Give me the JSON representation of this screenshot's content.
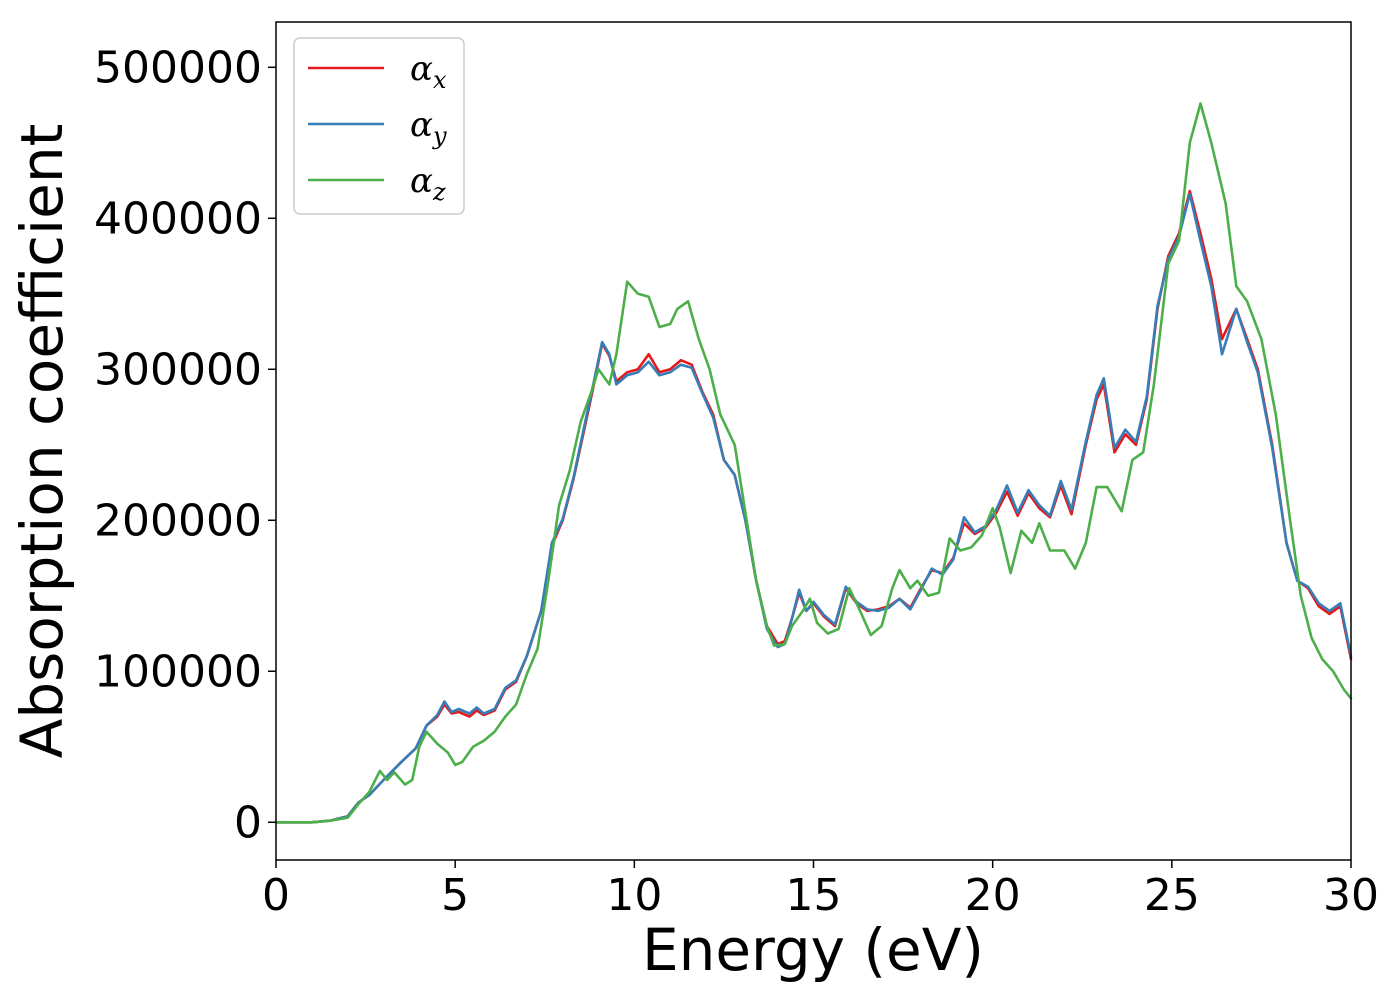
{
  "chart_data": {
    "type": "line",
    "xlabel": "Energy (eV)",
    "ylabel": "Absorption coefficient",
    "xlim": [
      0,
      30
    ],
    "ylim": [
      -25000,
      530000
    ],
    "xticks": [
      0,
      5,
      10,
      15,
      20,
      25,
      30
    ],
    "yticks": [
      0,
      100000,
      200000,
      300000,
      400000,
      500000
    ],
    "grid": false,
    "legend_position": "upper-left",
    "series": [
      {
        "name": "αx",
        "symbol": "α",
        "subscript": "x",
        "color": "#e41a1c",
        "points": [
          [
            0,
            0
          ],
          [
            1,
            0
          ],
          [
            1.5,
            1000
          ],
          [
            2,
            4000
          ],
          [
            2.3,
            13000
          ],
          [
            2.6,
            18000
          ],
          [
            3,
            28000
          ],
          [
            3.5,
            40000
          ],
          [
            3.9,
            49000
          ],
          [
            4.2,
            64000
          ],
          [
            4.5,
            70000
          ],
          [
            4.7,
            78000
          ],
          [
            4.9,
            72000
          ],
          [
            5.1,
            73000
          ],
          [
            5.4,
            70000
          ],
          [
            5.6,
            74000
          ],
          [
            5.8,
            71000
          ],
          [
            6.1,
            74000
          ],
          [
            6.4,
            88000
          ],
          [
            6.7,
            93000
          ],
          [
            7,
            110000
          ],
          [
            7.4,
            140000
          ],
          [
            7.7,
            183000
          ],
          [
            8,
            200000
          ],
          [
            8.3,
            227000
          ],
          [
            8.6,
            260000
          ],
          [
            8.9,
            293000
          ],
          [
            9.1,
            317000
          ],
          [
            9.3,
            309000
          ],
          [
            9.5,
            292000
          ],
          [
            9.8,
            298000
          ],
          [
            10.1,
            300000
          ],
          [
            10.4,
            310000
          ],
          [
            10.7,
            298000
          ],
          [
            11,
            300000
          ],
          [
            11.3,
            306000
          ],
          [
            11.6,
            303000
          ],
          [
            11.9,
            285000
          ],
          [
            12.2,
            270000
          ],
          [
            12.5,
            240000
          ],
          [
            12.8,
            230000
          ],
          [
            13.1,
            200000
          ],
          [
            13.4,
            160000
          ],
          [
            13.7,
            130000
          ],
          [
            14,
            118000
          ],
          [
            14.2,
            120000
          ],
          [
            14.4,
            135000
          ],
          [
            14.6,
            152000
          ],
          [
            14.8,
            140000
          ],
          [
            15,
            145000
          ],
          [
            15.3,
            136000
          ],
          [
            15.6,
            130000
          ],
          [
            15.9,
            155000
          ],
          [
            16.2,
            145000
          ],
          [
            16.5,
            140000
          ],
          [
            16.8,
            141000
          ],
          [
            17.1,
            143000
          ],
          [
            17.4,
            148000
          ],
          [
            17.7,
            142000
          ],
          [
            18,
            155000
          ],
          [
            18.3,
            167000
          ],
          [
            18.6,
            165000
          ],
          [
            18.9,
            175000
          ],
          [
            19.2,
            198000
          ],
          [
            19.5,
            191000
          ],
          [
            19.8,
            195000
          ],
          [
            20.1,
            205000
          ],
          [
            20.4,
            219000
          ],
          [
            20.7,
            203000
          ],
          [
            21,
            218000
          ],
          [
            21.3,
            208000
          ],
          [
            21.6,
            202000
          ],
          [
            21.9,
            223000
          ],
          [
            22.2,
            204000
          ],
          [
            22.6,
            250000
          ],
          [
            22.9,
            280000
          ],
          [
            23.1,
            290000
          ],
          [
            23.4,
            245000
          ],
          [
            23.7,
            257000
          ],
          [
            24,
            250000
          ],
          [
            24.3,
            280000
          ],
          [
            24.6,
            340000
          ],
          [
            24.9,
            375000
          ],
          [
            25.2,
            390000
          ],
          [
            25.5,
            418000
          ],
          [
            25.8,
            390000
          ],
          [
            26.1,
            360000
          ],
          [
            26.4,
            320000
          ],
          [
            26.8,
            340000
          ],
          [
            27.1,
            320000
          ],
          [
            27.4,
            300000
          ],
          [
            27.8,
            250000
          ],
          [
            28.2,
            185000
          ],
          [
            28.5,
            160000
          ],
          [
            28.8,
            155000
          ],
          [
            29.1,
            143000
          ],
          [
            29.4,
            138000
          ],
          [
            29.7,
            143000
          ],
          [
            30,
            108000
          ]
        ]
      },
      {
        "name": "αy",
        "symbol": "α",
        "subscript": "y",
        "color": "#377eb8",
        "points": [
          [
            0,
            0
          ],
          [
            1,
            0
          ],
          [
            1.5,
            1000
          ],
          [
            2,
            4000
          ],
          [
            2.3,
            13000
          ],
          [
            2.6,
            18000
          ],
          [
            3,
            28000
          ],
          [
            3.5,
            40000
          ],
          [
            3.9,
            49000
          ],
          [
            4.2,
            64000
          ],
          [
            4.5,
            71000
          ],
          [
            4.7,
            80000
          ],
          [
            4.9,
            73000
          ],
          [
            5.1,
            75000
          ],
          [
            5.4,
            72000
          ],
          [
            5.6,
            76000
          ],
          [
            5.8,
            72000
          ],
          [
            6.1,
            75000
          ],
          [
            6.4,
            89000
          ],
          [
            6.7,
            94000
          ],
          [
            7,
            110000
          ],
          [
            7.4,
            140000
          ],
          [
            7.7,
            185000
          ],
          [
            8,
            201000
          ],
          [
            8.3,
            228000
          ],
          [
            8.6,
            262000
          ],
          [
            8.9,
            295000
          ],
          [
            9.1,
            318000
          ],
          [
            9.3,
            310000
          ],
          [
            9.5,
            290000
          ],
          [
            9.8,
            296000
          ],
          [
            10.1,
            298000
          ],
          [
            10.4,
            305000
          ],
          [
            10.7,
            296000
          ],
          [
            11,
            298000
          ],
          [
            11.3,
            303000
          ],
          [
            11.6,
            301000
          ],
          [
            11.9,
            284000
          ],
          [
            12.2,
            268000
          ],
          [
            12.5,
            240000
          ],
          [
            12.8,
            230000
          ],
          [
            13.1,
            200000
          ],
          [
            13.4,
            160000
          ],
          [
            13.7,
            128000
          ],
          [
            14,
            116000
          ],
          [
            14.2,
            118000
          ],
          [
            14.4,
            135000
          ],
          [
            14.6,
            154000
          ],
          [
            14.8,
            140000
          ],
          [
            15,
            146000
          ],
          [
            15.3,
            137000
          ],
          [
            15.6,
            131000
          ],
          [
            15.9,
            156000
          ],
          [
            16.2,
            146000
          ],
          [
            16.5,
            141000
          ],
          [
            16.8,
            140000
          ],
          [
            17.1,
            142000
          ],
          [
            17.4,
            148000
          ],
          [
            17.7,
            141000
          ],
          [
            18,
            154000
          ],
          [
            18.3,
            168000
          ],
          [
            18.6,
            164000
          ],
          [
            18.9,
            174000
          ],
          [
            19.2,
            202000
          ],
          [
            19.5,
            192000
          ],
          [
            19.8,
            196000
          ],
          [
            20.1,
            207000
          ],
          [
            20.4,
            223000
          ],
          [
            20.7,
            205000
          ],
          [
            21,
            220000
          ],
          [
            21.3,
            210000
          ],
          [
            21.6,
            203000
          ],
          [
            21.9,
            226000
          ],
          [
            22.2,
            207000
          ],
          [
            22.6,
            252000
          ],
          [
            22.9,
            283000
          ],
          [
            23.1,
            294000
          ],
          [
            23.4,
            248000
          ],
          [
            23.7,
            260000
          ],
          [
            24,
            252000
          ],
          [
            24.3,
            282000
          ],
          [
            24.6,
            342000
          ],
          [
            24.9,
            373000
          ],
          [
            25.2,
            388000
          ],
          [
            25.5,
            416000
          ],
          [
            25.8,
            385000
          ],
          [
            26.1,
            355000
          ],
          [
            26.4,
            310000
          ],
          [
            26.8,
            340000
          ],
          [
            27.1,
            318000
          ],
          [
            27.4,
            298000
          ],
          [
            27.8,
            248000
          ],
          [
            28.2,
            185000
          ],
          [
            28.5,
            160000
          ],
          [
            28.8,
            156000
          ],
          [
            29.1,
            145000
          ],
          [
            29.4,
            140000
          ],
          [
            29.7,
            145000
          ],
          [
            30,
            110000
          ]
        ]
      },
      {
        "name": "αz",
        "symbol": "α",
        "subscript": "z",
        "color": "#4daf4a",
        "points": [
          [
            0,
            0
          ],
          [
            1,
            0
          ],
          [
            1.5,
            1000
          ],
          [
            2,
            3000
          ],
          [
            2.3,
            12000
          ],
          [
            2.6,
            20000
          ],
          [
            2.9,
            34000
          ],
          [
            3.1,
            28000
          ],
          [
            3.3,
            33000
          ],
          [
            3.6,
            25000
          ],
          [
            3.8,
            28000
          ],
          [
            4,
            50000
          ],
          [
            4.2,
            60000
          ],
          [
            4.5,
            52000
          ],
          [
            4.8,
            46000
          ],
          [
            5,
            38000
          ],
          [
            5.2,
            40000
          ],
          [
            5.5,
            50000
          ],
          [
            5.8,
            54000
          ],
          [
            6.1,
            60000
          ],
          [
            6.4,
            70000
          ],
          [
            6.7,
            78000
          ],
          [
            7,
            98000
          ],
          [
            7.3,
            115000
          ],
          [
            7.6,
            160000
          ],
          [
            7.9,
            210000
          ],
          [
            8.2,
            233000
          ],
          [
            8.5,
            265000
          ],
          [
            8.8,
            285000
          ],
          [
            9,
            300000
          ],
          [
            9.3,
            290000
          ],
          [
            9.5,
            310000
          ],
          [
            9.8,
            358000
          ],
          [
            10.1,
            350000
          ],
          [
            10.4,
            348000
          ],
          [
            10.7,
            328000
          ],
          [
            11,
            330000
          ],
          [
            11.2,
            340000
          ],
          [
            11.5,
            345000
          ],
          [
            11.8,
            320000
          ],
          [
            12.1,
            300000
          ],
          [
            12.4,
            270000
          ],
          [
            12.8,
            250000
          ],
          [
            13.1,
            205000
          ],
          [
            13.4,
            160000
          ],
          [
            13.7,
            130000
          ],
          [
            13.9,
            117000
          ],
          [
            14.2,
            118000
          ],
          [
            14.4,
            130000
          ],
          [
            14.7,
            140000
          ],
          [
            14.9,
            148000
          ],
          [
            15.1,
            132000
          ],
          [
            15.4,
            125000
          ],
          [
            15.7,
            128000
          ],
          [
            16,
            155000
          ],
          [
            16.3,
            140000
          ],
          [
            16.6,
            124000
          ],
          [
            16.9,
            130000
          ],
          [
            17.2,
            155000
          ],
          [
            17.4,
            167000
          ],
          [
            17.7,
            155000
          ],
          [
            17.9,
            160000
          ],
          [
            18.2,
            150000
          ],
          [
            18.5,
            152000
          ],
          [
            18.8,
            188000
          ],
          [
            19.1,
            180000
          ],
          [
            19.4,
            182000
          ],
          [
            19.7,
            190000
          ],
          [
            20,
            208000
          ],
          [
            20.2,
            195000
          ],
          [
            20.5,
            165000
          ],
          [
            20.8,
            193000
          ],
          [
            21.1,
            185000
          ],
          [
            21.3,
            198000
          ],
          [
            21.6,
            180000
          ],
          [
            22,
            180000
          ],
          [
            22.3,
            168000
          ],
          [
            22.6,
            185000
          ],
          [
            22.9,
            222000
          ],
          [
            23.2,
            222000
          ],
          [
            23.6,
            206000
          ],
          [
            23.9,
            240000
          ],
          [
            24.2,
            245000
          ],
          [
            24.5,
            290000
          ],
          [
            24.9,
            370000
          ],
          [
            25.2,
            385000
          ],
          [
            25.5,
            450000
          ],
          [
            25.8,
            476000
          ],
          [
            26.1,
            450000
          ],
          [
            26.5,
            410000
          ],
          [
            26.8,
            355000
          ],
          [
            27.1,
            345000
          ],
          [
            27.5,
            320000
          ],
          [
            27.9,
            270000
          ],
          [
            28.3,
            200000
          ],
          [
            28.6,
            150000
          ],
          [
            28.9,
            122000
          ],
          [
            29.2,
            108000
          ],
          [
            29.5,
            100000
          ],
          [
            29.8,
            88000
          ],
          [
            30,
            82000
          ]
        ]
      }
    ]
  }
}
